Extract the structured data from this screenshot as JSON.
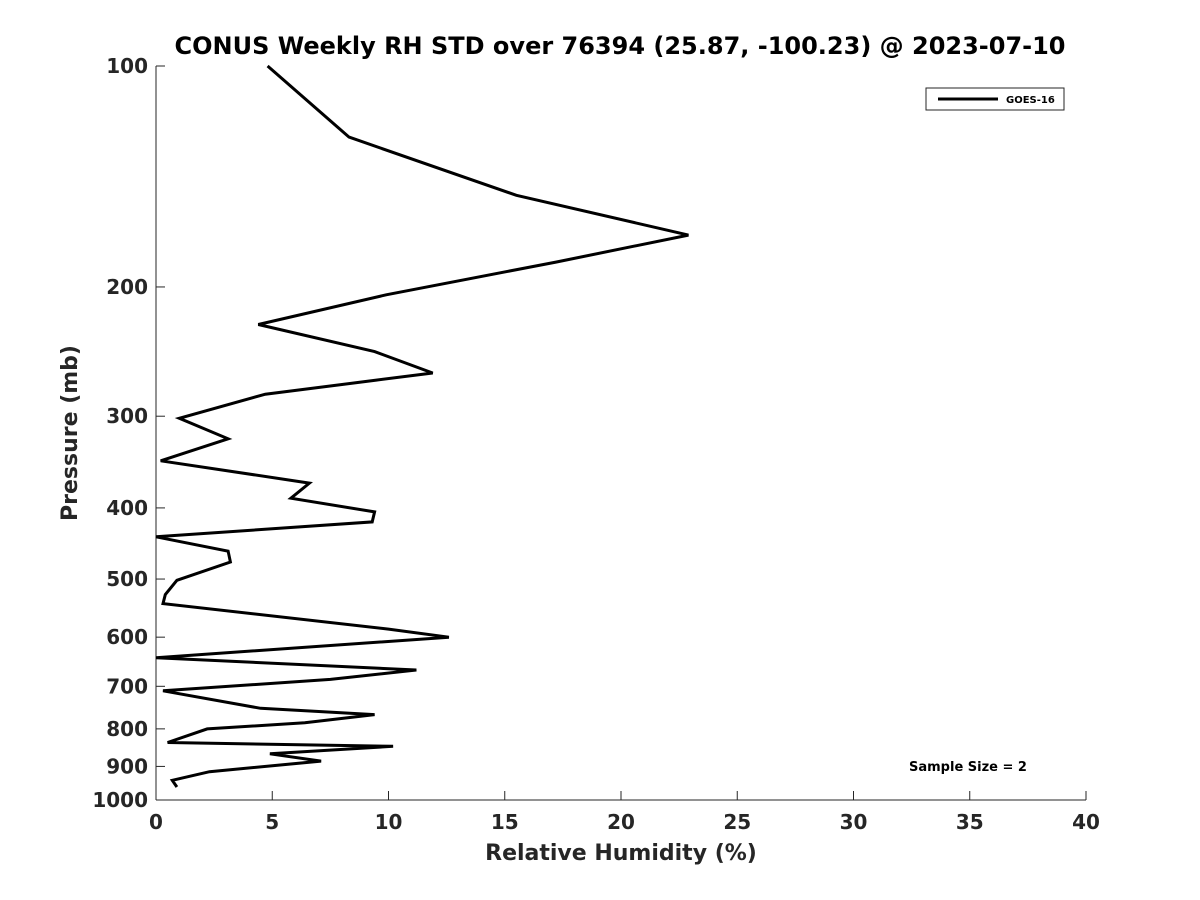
{
  "chart_data": {
    "type": "line",
    "title": "CONUS Weekly RH STD over 76394 (25.87, -100.23) @ 2023-07-10",
    "xlabel": "Relative Humidity (%)",
    "ylabel": "Pressure (mb)",
    "xlim": [
      0,
      40
    ],
    "ylim": [
      100,
      1000
    ],
    "yscale": "log",
    "yreversed": true,
    "xticks": [
      0,
      5,
      10,
      15,
      20,
      25,
      30,
      35,
      40
    ],
    "yticks": [
      100,
      200,
      300,
      400,
      500,
      600,
      700,
      800,
      900,
      1000
    ],
    "grid": false,
    "legend_position": "top-right",
    "annotation": "Sample Size = 2",
    "series": [
      {
        "name": "GOES-16",
        "color": "#000000",
        "points": [
          [
            4.8,
            100
          ],
          [
            8.3,
            125
          ],
          [
            15.5,
            150
          ],
          [
            22.9,
            170
          ],
          [
            17.2,
            185
          ],
          [
            9.9,
            205
          ],
          [
            4.4,
            225
          ],
          [
            9.4,
            245
          ],
          [
            11.9,
            262
          ],
          [
            4.7,
            280
          ],
          [
            1.0,
            302
          ],
          [
            3.1,
            322
          ],
          [
            0.2,
            345
          ],
          [
            6.6,
            370
          ],
          [
            5.8,
            388
          ],
          [
            9.4,
            405
          ],
          [
            9.3,
            418
          ],
          [
            0.0,
            438
          ],
          [
            3.1,
            458
          ],
          [
            3.2,
            474
          ],
          [
            0.9,
            502
          ],
          [
            0.4,
            525
          ],
          [
            0.3,
            540
          ],
          [
            10.0,
            585
          ],
          [
            12.6,
            600
          ],
          [
            0.0,
            640
          ],
          [
            11.2,
            665
          ],
          [
            7.5,
            685
          ],
          [
            0.3,
            710
          ],
          [
            4.5,
            750
          ],
          [
            9.4,
            765
          ],
          [
            6.4,
            785
          ],
          [
            2.2,
            800
          ],
          [
            0.5,
            835
          ],
          [
            10.2,
            845
          ],
          [
            4.9,
            865
          ],
          [
            7.1,
            885
          ],
          [
            2.3,
            915
          ],
          [
            0.7,
            940
          ],
          [
            0.9,
            960
          ]
        ]
      }
    ]
  }
}
